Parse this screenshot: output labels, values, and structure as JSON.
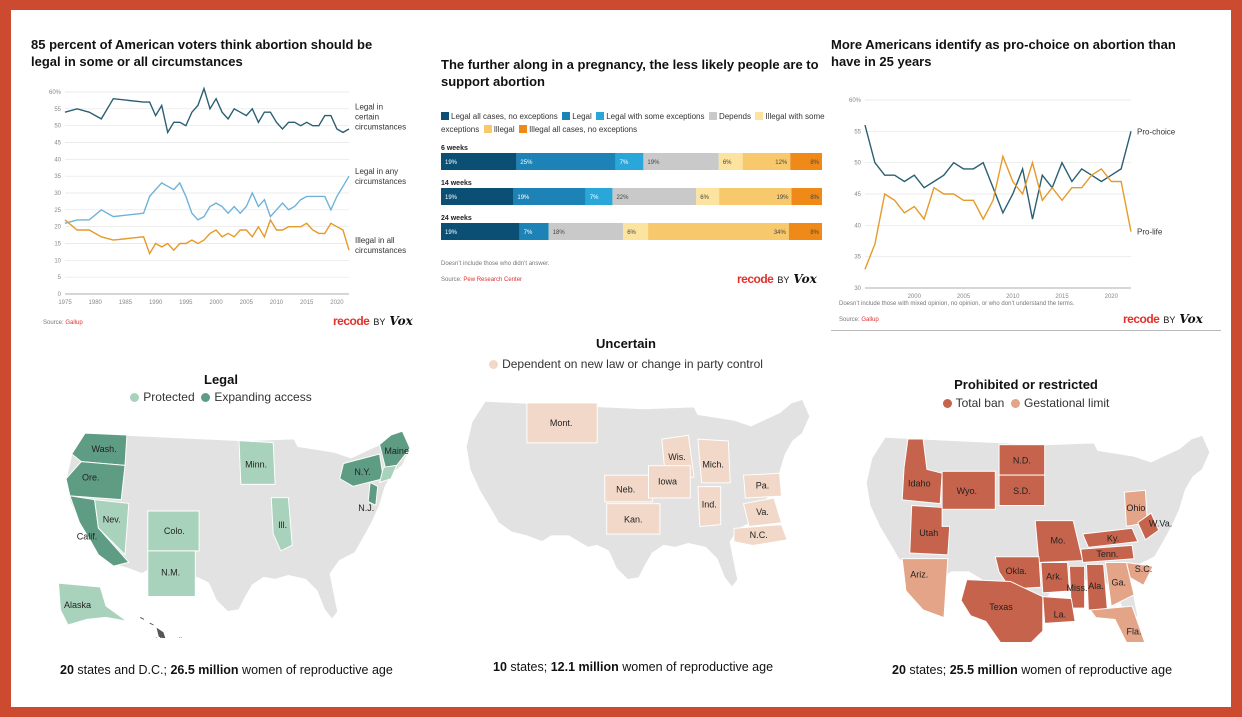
{
  "colors": {
    "frame": "#cc4a2f",
    "line_certain": "#2b5f73",
    "line_any": "#6fb3d8",
    "line_illegal": "#e59a2a",
    "bar_legal_all": "#0b4f75",
    "bar_legal": "#1d82b5",
    "bar_legal_some": "#2aa7d9",
    "bar_depends": "#c9c9c9",
    "bar_illegal_some": "#fde3a0",
    "bar_illegal": "#f7c96c",
    "bar_illegal_all": "#ef8a19",
    "map_base": "#e2e2e2",
    "map_protected": "#a9d2bc",
    "map_expanding": "#5f9c84",
    "map_dependent": "#f2d8c8",
    "map_total_ban": "#c6634c",
    "map_gestational": "#e3a488"
  },
  "chart_data": [
    {
      "type": "line",
      "title": "85 percent of American voters think abortion should be legal in some or all circumstances",
      "x": [
        1975,
        1977,
        1979,
        1981,
        1983,
        1988,
        1989,
        1990,
        1991,
        1992,
        1993,
        1994,
        1995,
        1996,
        1997,
        1998,
        1999,
        2000,
        2001,
        2002,
        2003,
        2004,
        2005,
        2006,
        2007,
        2008,
        2009,
        2010,
        2011,
        2012,
        2013,
        2014,
        2015,
        2016,
        2017,
        2018,
        2019,
        2020,
        2021,
        2022
      ],
      "xticks": [
        "1975",
        "1980",
        "1985",
        "1990",
        "1995",
        "2000",
        "2005",
        "2010",
        "2015",
        "2020"
      ],
      "xtick_values": [
        1975,
        1980,
        1985,
        1990,
        1995,
        2000,
        2005,
        2010,
        2015,
        2020
      ],
      "yticks": [
        "0",
        "5",
        "10",
        "15",
        "20",
        "25",
        "30",
        "35",
        "40",
        "45",
        "50",
        "55",
        "60%"
      ],
      "ylim": [
        0,
        60
      ],
      "series": [
        {
          "name": "Legal in certain circumstances",
          "color": "#2b5f73",
          "values": [
            54,
            55,
            54,
            52,
            58,
            57,
            57,
            53,
            56,
            48,
            51,
            51,
            50,
            54,
            56,
            61,
            55,
            58,
            54,
            52,
            55,
            54,
            53,
            55,
            51,
            54,
            54,
            51,
            49,
            51,
            51,
            50,
            51,
            50,
            50,
            53,
            53,
            49,
            48,
            49
          ]
        },
        {
          "name": "Legal in any circumstances",
          "color": "#6fb3d8",
          "values": [
            21,
            22,
            22,
            25,
            23,
            24,
            29,
            31,
            33,
            32,
            31,
            33,
            29,
            24,
            22,
            23,
            26,
            27,
            26,
            24,
            26,
            24,
            26,
            30,
            26,
            28,
            23,
            25,
            27,
            25,
            26,
            28,
            29,
            29,
            29,
            29,
            25,
            29,
            32,
            35
          ]
        },
        {
          "name": "Illegal in all circumstances",
          "color": "#e59a2a",
          "values": [
            22,
            19,
            19,
            17,
            16,
            17,
            12,
            15,
            14,
            15,
            13,
            15,
            15,
            16,
            15,
            16,
            18,
            19,
            17,
            18,
            17,
            19,
            19,
            17,
            20,
            17,
            22,
            19,
            19,
            20,
            20,
            20,
            21,
            19,
            18,
            18,
            21,
            20,
            19,
            13
          ]
        }
      ],
      "series_labels": [
        "Legal in certain circumstances",
        "Legal in any circumstances",
        "Illegal in all circumstances"
      ],
      "source_prefix": "Source:",
      "source": "Gallup"
    },
    {
      "type": "bar",
      "stacked": true,
      "title": "The further along in a pregnancy, the less likely people are to support abortion",
      "legend": [
        "Legal all cases, no exceptions",
        "Legal",
        "Legal with some exceptions",
        "Depends",
        "Illegal with some exceptions",
        "Illegal",
        "Illegal all cases, no exceptions"
      ],
      "categories": [
        "6 weeks",
        "14 weeks",
        "24 weeks"
      ],
      "series": [
        {
          "name": "Legal all cases, no exceptions",
          "values": [
            19,
            19,
            19
          ]
        },
        {
          "name": "Legal",
          "values": [
            25,
            19,
            7
          ]
        },
        {
          "name": "Legal with some exceptions",
          "values": [
            7,
            7,
            0
          ]
        },
        {
          "name": "Depends",
          "values": [
            19,
            22,
            18
          ]
        },
        {
          "name": "Illegal with some exceptions",
          "values": [
            6,
            6,
            6
          ]
        },
        {
          "name": "Illegal",
          "values": [
            12,
            19,
            34
          ]
        },
        {
          "name": "Illegal all cases, no exceptions",
          "values": [
            8,
            8,
            8
          ]
        }
      ],
      "data_labels": [
        [
          "19%",
          "25%",
          "7%",
          "19%",
          "6%",
          "12%",
          "8%"
        ],
        [
          "19%",
          "19%",
          "7%",
          "22%",
          "6%",
          "19%",
          "8%"
        ],
        [
          "19%",
          "7%",
          "",
          "18%",
          "6%",
          "34%",
          "8%"
        ]
      ],
      "note": "Doesn’t include those who didn’t answer.",
      "source_prefix": "Source:",
      "source": "Pew Research Center"
    },
    {
      "type": "line",
      "title": "More Americans identify as pro-choice on abortion than have in 25 years",
      "x": [
        1995,
        1996,
        1997,
        1998,
        1999,
        2000,
        2001,
        2002,
        2003,
        2004,
        2005,
        2006,
        2007,
        2008,
        2009,
        2010,
        2011,
        2012,
        2013,
        2014,
        2015,
        2016,
        2017,
        2018,
        2019,
        2020,
        2021,
        2022
      ],
      "xticks": [
        "2000",
        "2005",
        "2010",
        "2015",
        "2020"
      ],
      "xtick_values": [
        2000,
        2005,
        2010,
        2015,
        2020
      ],
      "yticks": [
        "30",
        "35",
        "40",
        "45",
        "50",
        "55",
        "60%"
      ],
      "ylim": [
        30,
        60
      ],
      "series": [
        {
          "name": "Pro-choice",
          "color": "#2b5f73",
          "values": [
            56,
            50,
            48,
            48,
            47,
            48,
            46,
            47,
            48,
            50,
            49,
            49,
            50,
            46,
            42,
            45,
            49,
            41,
            48,
            46,
            50,
            47,
            49,
            48,
            47,
            48,
            49,
            55
          ]
        },
        {
          "name": "Pro-life",
          "color": "#e59a2a",
          "values": [
            33,
            37,
            45,
            44,
            42,
            43,
            41,
            46,
            45,
            45,
            44,
            44,
            41,
            44,
            51,
            47,
            45,
            50,
            44,
            46,
            44,
            46,
            46,
            48,
            49,
            47,
            47,
            39
          ]
        }
      ],
      "note": "Doesn’t include those with mixed opinion, no opinion, or who don’t understand the terms.",
      "source_prefix": "Source:",
      "source": "Gallup"
    }
  ],
  "brand": {
    "recode": "recode",
    "by": "BY",
    "vox": "Vox"
  },
  "maps": {
    "legal": {
      "title": "Legal",
      "legend": [
        "Protected",
        "Expanding access"
      ],
      "labels": [
        "Wash.",
        "Ore.",
        "Calif.",
        "Nev.",
        "Colo.",
        "N.M.",
        "Minn.",
        "Ill.",
        "N.Y.",
        "Maine",
        "N.J.",
        "Alaska",
        "Hawaii"
      ],
      "stat_num": "20",
      "stat_mid": " states and D.C.; ",
      "stat_big": "26.5 million",
      "stat_tail": " women of reproductive age"
    },
    "uncertain": {
      "title": "Uncertain",
      "legend": [
        "Dependent on new law or change in party control"
      ],
      "labels": [
        "Mont.",
        "Wis.",
        "Mich.",
        "Neb.",
        "Iowa",
        "Ind.",
        "Pa.",
        "Kan.",
        "Va.",
        "N.C."
      ],
      "stat_num": "10",
      "stat_mid": " states; ",
      "stat_big": "12.1 million",
      "stat_tail": " women of reproductive age"
    },
    "prohibited": {
      "title": "Prohibited or restricted",
      "legend": [
        "Total ban",
        "Gestational limit"
      ],
      "labels": [
        "Idaho",
        "Wyo.",
        "N.D.",
        "S.D.",
        "Utah",
        "Ohio",
        "W.Va.",
        "Ky.",
        "Mo.",
        "Tenn.",
        "S.C.",
        "Okla.",
        "Ark.",
        "Ariz.",
        "Miss.",
        "Ala.",
        "Ga.",
        "Texas",
        "La.",
        "Fla."
      ],
      "stat_num": "20",
      "stat_mid": " states; ",
      "stat_big": "25.5 million",
      "stat_tail": " women of reproductive age"
    }
  }
}
